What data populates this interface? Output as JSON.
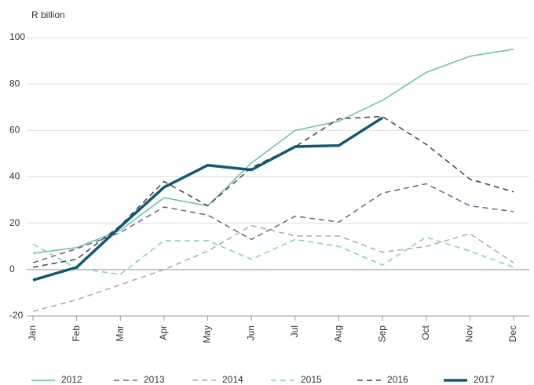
{
  "chart_data": {
    "type": "line",
    "y_label": "R billion",
    "categories": [
      "Jan",
      "Feb",
      "Mar",
      "Apr",
      "May",
      "Jun",
      "Jul",
      "Aug",
      "Sep",
      "Oct",
      "Nov",
      "Dec"
    ],
    "ylim": [
      -20,
      100
    ],
    "yticks": [
      -20,
      0,
      20,
      40,
      60,
      80,
      100
    ],
    "grid": true,
    "legend": "bottom",
    "series": [
      {
        "name": "2012",
        "color": "#5fc4a8",
        "style": "solid",
        "line_width": 1.5,
        "values": [
          7,
          9.5,
          17,
          31,
          27.5,
          46,
          60,
          64,
          73,
          85,
          92,
          95
        ]
      },
      {
        "name": "2013",
        "color": "#7b5b8c",
        "style": "dashed",
        "line_width": 1.5,
        "values": [
          3,
          9,
          16,
          27,
          23.5,
          13,
          23,
          20.5,
          33,
          37,
          27.5,
          25
        ]
      },
      {
        "name": "2014",
        "color": "#aaaaaa",
        "style": "dashed",
        "line_width": 1.5,
        "values": [
          -18,
          -13,
          -6.5,
          0,
          8,
          19,
          14.5,
          14.5,
          7.5,
          10,
          15.5,
          3
        ]
      },
      {
        "name": "2015",
        "color": "#7fd3b8",
        "style": "dashed",
        "line_width": 1.5,
        "values": [
          11,
          0.5,
          -2,
          12.5,
          12.5,
          4.5,
          13,
          10,
          2,
          14,
          8,
          1
        ]
      },
      {
        "name": "2016",
        "color": "#444444",
        "style": "dashed",
        "line_width": 1.5,
        "values": [
          1,
          4.5,
          19,
          38,
          27.5,
          44,
          53,
          65,
          66,
          54,
          39,
          33.5
        ]
      },
      {
        "name": "2017",
        "color": "#0d5a78",
        "style": "solid",
        "line_width": 3.5,
        "values": [
          -4.5,
          1,
          18.5,
          35.5,
          45,
          43,
          53,
          53.5,
          65.5,
          null,
          null,
          null
        ]
      }
    ]
  }
}
